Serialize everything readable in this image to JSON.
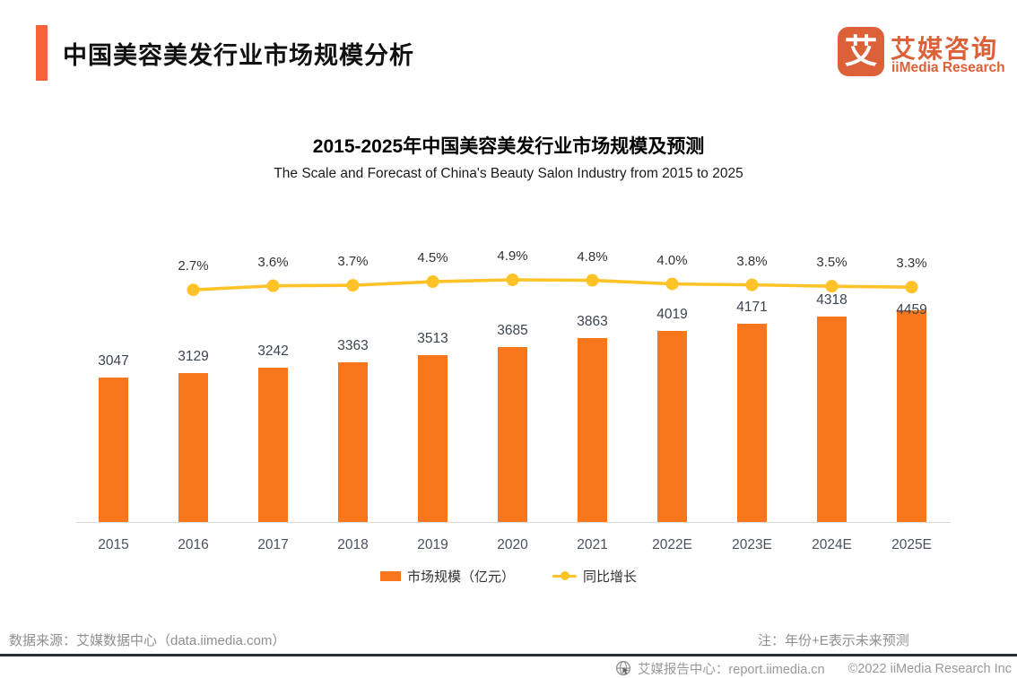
{
  "header": {
    "title": "中国美容美发行业市场规模分析",
    "logo_glyph": "艾",
    "brand_cn": "艾媒咨询",
    "brand_en": "iiMedia Research"
  },
  "chart_data": {
    "type": "bar",
    "title": "2015-2025年中国美容美发行业市场规模及预测",
    "subtitle": "The Scale and Forecast of China's Beauty Salon Industry from 2015 to 2025",
    "categories": [
      "2015",
      "2016",
      "2017",
      "2018",
      "2019",
      "2020",
      "2021",
      "2022E",
      "2023E",
      "2024E",
      "2025E"
    ],
    "series": [
      {
        "name": "市场规模（亿元）",
        "type": "bar",
        "values": [
          3047,
          3129,
          3242,
          3363,
          3513,
          3685,
          3863,
          4019,
          4171,
          4318,
          4459
        ]
      },
      {
        "name": "同比增长",
        "type": "line",
        "unit": "%",
        "values": [
          null,
          2.7,
          3.6,
          3.7,
          4.5,
          4.9,
          4.8,
          4.0,
          3.8,
          3.5,
          3.3
        ]
      }
    ],
    "legend_position": "bottom",
    "grid": false,
    "y_axis_visible": false
  },
  "footer": {
    "source": "数据来源：艾媒数据中心（data.iimedia.com）",
    "note": "注：年份+E表示未来预测",
    "report_center": "艾媒报告中心：report.iimedia.cn",
    "copyright": "©2022  iiMedia Research  Inc"
  },
  "colors": {
    "bar": "#F8771D",
    "line": "#FFC227",
    "accent": "#F8633C",
    "brand": "#DC6038"
  }
}
